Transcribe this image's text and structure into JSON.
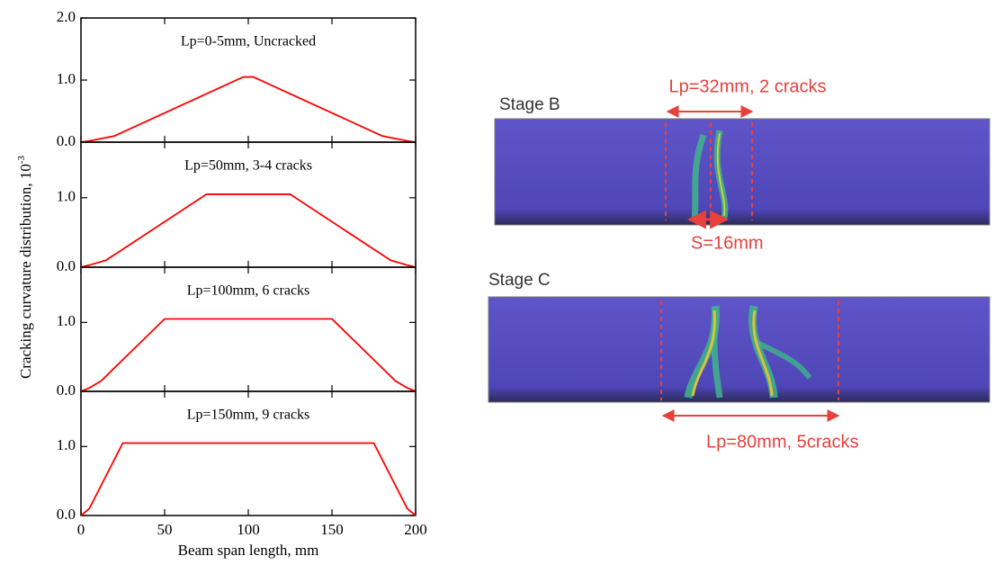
{
  "shared": {
    "xlabel": "Beam span length, mm",
    "ylabel": "Cracking curvature distribution, 10",
    "ylabel_exponent": "-3"
  },
  "chart_data": [
    {
      "type": "line",
      "annotation": "Lp=0-5mm, Uncracked",
      "x": [
        0,
        5,
        20,
        97,
        103,
        180,
        195,
        200
      ],
      "series": [
        {
          "color": "#ff0000",
          "values": [
            0,
            0.02,
            0.1,
            1.05,
            1.05,
            0.1,
            0.02,
            0
          ]
        }
      ],
      "xlim": [
        0,
        200
      ],
      "xticks": [
        0,
        50,
        100,
        150,
        200
      ],
      "ylim": [
        0,
        2
      ],
      "yticks": [
        {
          "value": 0,
          "label": "0.0"
        },
        {
          "value": 1,
          "label": "1.0"
        },
        {
          "value": 2,
          "label": "2.0"
        }
      ]
    },
    {
      "type": "line",
      "annotation": "Lp=50mm, 3-4 cracks",
      "x": [
        0,
        5,
        15,
        75,
        125,
        185,
        195,
        200
      ],
      "series": [
        {
          "color": "#ff0000",
          "values": [
            0,
            0.03,
            0.1,
            1.05,
            1.05,
            0.1,
            0.03,
            0
          ]
        }
      ],
      "xlim": [
        0,
        200
      ],
      "xticks": [
        0,
        50,
        100,
        150,
        200
      ],
      "ylim": [
        0,
        1.8
      ],
      "yticks": [
        {
          "value": 0,
          "label": "0.0"
        },
        {
          "value": 1,
          "label": "1.0"
        }
      ]
    },
    {
      "type": "line",
      "annotation": "Lp=100mm, 6 cracks",
      "x": [
        0,
        5,
        12,
        50,
        150,
        188,
        195,
        200
      ],
      "series": [
        {
          "color": "#ff0000",
          "values": [
            0,
            0.05,
            0.15,
            1.05,
            1.05,
            0.15,
            0.05,
            0
          ]
        }
      ],
      "xlim": [
        0,
        200
      ],
      "xticks": [
        0,
        50,
        100,
        150,
        200
      ],
      "ylim": [
        0,
        1.8
      ],
      "yticks": [
        {
          "value": 0,
          "label": "0.0"
        },
        {
          "value": 1,
          "label": "1.0"
        }
      ]
    },
    {
      "type": "line",
      "annotation": "Lp=150mm, 9 cracks",
      "x": [
        0,
        5,
        25,
        175,
        195,
        200
      ],
      "series": [
        {
          "color": "#ff0000",
          "values": [
            0,
            0.1,
            1.05,
            1.05,
            0.1,
            0
          ]
        }
      ],
      "xlim": [
        0,
        200
      ],
      "xticks": [
        0,
        50,
        100,
        150,
        200
      ],
      "ylim": [
        0,
        1.8
      ],
      "yticks": [
        {
          "value": 0,
          "label": "0.0"
        },
        {
          "value": 1,
          "label": "1.0"
        }
      ]
    }
  ],
  "images": {
    "stage_b": {
      "title": "Stage B",
      "span_label": "Lp=32mm, 2 cracks",
      "spacing_label": "S=16mm"
    },
    "stage_c": {
      "title": "Stage C",
      "span_label": "Lp=80mm, 5cracks"
    }
  }
}
